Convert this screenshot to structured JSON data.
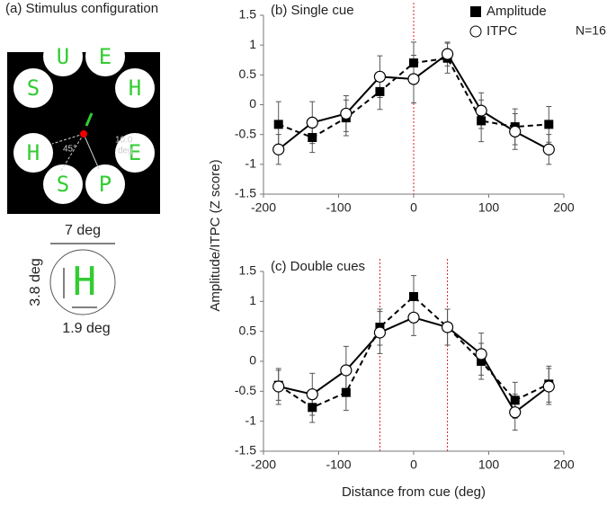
{
  "stimulus": {
    "title": "(a) Stimulus configuration",
    "letters": [
      "U",
      "E",
      "H",
      "E",
      "P",
      "S",
      "H",
      "S"
    ],
    "angle": "45°",
    "eccentricity": [
      "10.0",
      "deg"
    ],
    "width": "7 deg",
    "height": "3.8 deg",
    "letter_width": "1.9 deg",
    "example_letter": "H"
  },
  "chart_data": [
    {
      "type": "line",
      "title": "(b) Single cue",
      "ylabel": "Amplitude/ITPC (Z score)",
      "annotation": "N=16",
      "legend": "upper right",
      "x": [
        -180,
        -135,
        -90,
        -45,
        0,
        45,
        90,
        135,
        180
      ],
      "series": [
        {
          "name": "Amplitude",
          "color": "#000000",
          "marker": "square",
          "linestyle": "dashed",
          "values": [
            -0.33,
            -0.55,
            -0.22,
            0.22,
            0.7,
            0.78,
            -0.27,
            -0.37,
            -0.33
          ],
          "errors": [
            0.38,
            0.25,
            0.3,
            0.3,
            0.35,
            0.25,
            0.35,
            0.3,
            0.3
          ]
        },
        {
          "name": "ITPC",
          "color": "#000000",
          "marker": "circle",
          "linestyle": "solid",
          "values": [
            -0.75,
            -0.3,
            -0.15,
            0.47,
            0.43,
            0.85,
            -0.1,
            -0.45,
            -0.75
          ],
          "errors": [
            0.25,
            0.35,
            0.3,
            0.35,
            0.4,
            0.2,
            0.3,
            0.3,
            0.25
          ]
        }
      ],
      "vlines": [
        0
      ],
      "xlim": [
        -200,
        200
      ],
      "xticks": [
        -200,
        -100,
        0,
        100,
        200
      ],
      "ylim": [
        -1.5,
        1.5
      ],
      "yticks": [
        -1.5,
        -1,
        -0.5,
        0,
        0.5,
        1,
        1.5
      ]
    },
    {
      "type": "line",
      "title": "(c) Double cues",
      "xlabel": "Distance from cue (deg)",
      "x": [
        -180,
        -135,
        -90,
        -45,
        0,
        45,
        90,
        135,
        180
      ],
      "series": [
        {
          "color": "#000000",
          "marker": "square",
          "linestyle": "dashed",
          "values": [
            -0.4,
            -0.77,
            -0.52,
            0.57,
            1.08,
            0.57,
            0.0,
            -0.65,
            -0.38
          ],
          "errors": [
            0.25,
            0.25,
            0.3,
            0.3,
            0.35,
            0.3,
            0.3,
            0.3,
            0.3
          ]
        },
        {
          "color": "#000000",
          "marker": "circle",
          "linestyle": "solid",
          "values": [
            -0.42,
            -0.55,
            -0.15,
            0.48,
            0.73,
            0.57,
            0.12,
            -0.85,
            -0.42
          ],
          "errors": [
            0.3,
            0.35,
            0.4,
            0.35,
            0.3,
            0.3,
            0.35,
            0.3,
            0.3
          ]
        }
      ],
      "vlines": [
        -45,
        45
      ],
      "xlim": [
        -200,
        200
      ],
      "xticks": [
        -200,
        -100,
        0,
        100,
        200
      ],
      "ylim": [
        -1.5,
        1.5
      ],
      "yticks": [
        -1.5,
        -1,
        -0.5,
        0,
        0.5,
        1,
        1.5
      ]
    }
  ]
}
